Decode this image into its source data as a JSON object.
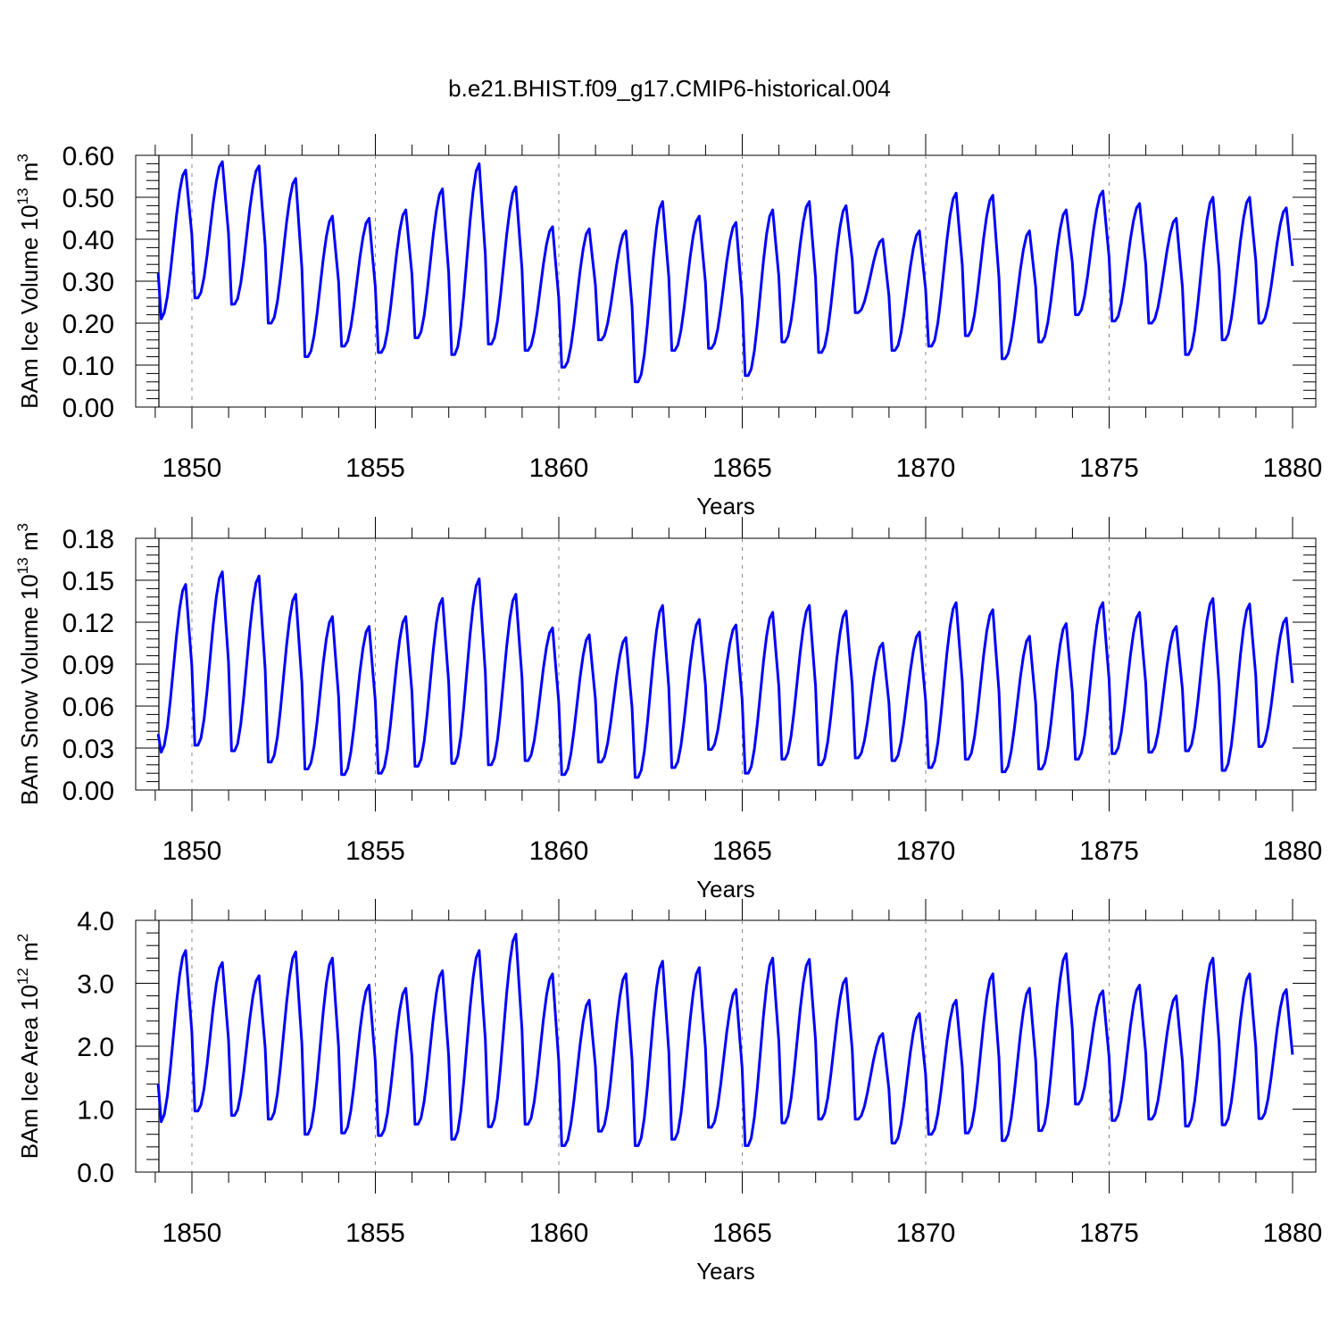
{
  "title": "b.e21.BHIST.f09_g17.CMIP6-historical.004",
  "chart_data": [
    {
      "type": "line",
      "ylabel": "BAm Ice Volume",
      "yunit_base": "10",
      "yunit_exp": "13",
      "yunit_sym": "m",
      "yunit_pow": "3",
      "xlabel": "Years",
      "xlim": [
        1849.08,
        1880.0
      ],
      "ylim": [
        0.0,
        0.6
      ],
      "xticks": [
        "1850",
        "1855",
        "1860",
        "1865",
        "1870",
        "1875",
        "1880"
      ],
      "yticks": [
        "0.00",
        "0.10",
        "0.20",
        "0.30",
        "0.40",
        "0.50",
        "0.60"
      ],
      "series": [
        {
          "color": "#0000ff",
          "peaks": [
            0.565,
            0.585,
            0.575,
            0.545,
            0.455,
            0.45,
            0.47,
            0.52,
            0.58,
            0.525,
            0.43,
            0.425,
            0.42,
            0.49,
            0.455,
            0.44,
            0.47,
            0.49,
            0.48,
            0.4,
            0.42,
            0.51,
            0.505,
            0.42,
            0.47,
            0.515,
            0.485,
            0.45,
            0.5,
            0.5,
            0.475
          ],
          "troughs": [
            0.21,
            0.26,
            0.245,
            0.2,
            0.12,
            0.145,
            0.13,
            0.165,
            0.125,
            0.15,
            0.135,
            0.095,
            0.16,
            0.06,
            0.135,
            0.14,
            0.075,
            0.155,
            0.13,
            0.225,
            0.135,
            0.145,
            0.17,
            0.115,
            0.155,
            0.22,
            0.205,
            0.2,
            0.125,
            0.16,
            0.2
          ]
        }
      ]
    },
    {
      "type": "line",
      "ylabel": "BAm Snow Volume",
      "yunit_base": "10",
      "yunit_exp": "13",
      "yunit_sym": "m",
      "yunit_pow": "3",
      "xlabel": "Years",
      "xlim": [
        1849.08,
        1880.0
      ],
      "ylim": [
        0.0,
        0.18
      ],
      "xticks": [
        "1850",
        "1855",
        "1860",
        "1865",
        "1870",
        "1875",
        "1880"
      ],
      "yticks": [
        "0.00",
        "0.03",
        "0.06",
        "0.09",
        "0.12",
        "0.15",
        "0.18"
      ],
      "series": [
        {
          "color": "#0000ff",
          "peaks": [
            0.147,
            0.156,
            0.153,
            0.14,
            0.124,
            0.117,
            0.124,
            0.137,
            0.151,
            0.14,
            0.116,
            0.111,
            0.109,
            0.132,
            0.122,
            0.118,
            0.127,
            0.132,
            0.128,
            0.105,
            0.113,
            0.134,
            0.129,
            0.11,
            0.119,
            0.134,
            0.127,
            0.117,
            0.137,
            0.133,
            0.123
          ],
          "troughs": [
            0.027,
            0.032,
            0.028,
            0.02,
            0.015,
            0.011,
            0.012,
            0.017,
            0.019,
            0.018,
            0.021,
            0.011,
            0.02,
            0.009,
            0.016,
            0.029,
            0.012,
            0.022,
            0.018,
            0.023,
            0.021,
            0.016,
            0.022,
            0.013,
            0.015,
            0.022,
            0.026,
            0.027,
            0.028,
            0.014,
            0.031
          ]
        }
      ]
    },
    {
      "type": "line",
      "ylabel": "BAm Ice Area",
      "yunit_base": "10",
      "yunit_exp": "12",
      "yunit_sym": "m",
      "yunit_pow": "2",
      "xlabel": "Years",
      "xlim": [
        1849.08,
        1880.0
      ],
      "ylim": [
        0.0,
        4.0
      ],
      "xticks": [
        "1850",
        "1855",
        "1860",
        "1865",
        "1870",
        "1875",
        "1880"
      ],
      "yticks": [
        "0.0",
        "1.0",
        "2.0",
        "3.0",
        "4.0"
      ],
      "series": [
        {
          "color": "#0000ff",
          "peaks": [
            3.52,
            3.33,
            3.12,
            3.5,
            3.4,
            2.97,
            2.92,
            3.2,
            3.52,
            3.78,
            3.15,
            2.73,
            3.15,
            3.35,
            3.25,
            2.9,
            3.4,
            3.38,
            3.08,
            2.2,
            2.52,
            2.73,
            3.15,
            2.92,
            3.47,
            2.88,
            2.97,
            2.8,
            3.4,
            3.15,
            2.9
          ],
          "troughs": [
            0.8,
            0.97,
            0.9,
            0.84,
            0.6,
            0.62,
            0.58,
            0.76,
            0.52,
            0.72,
            0.76,
            0.42,
            0.65,
            0.42,
            0.52,
            0.71,
            0.42,
            0.78,
            0.84,
            0.84,
            0.46,
            0.6,
            0.62,
            0.5,
            0.66,
            1.08,
            0.82,
            0.84,
            0.73,
            0.75,
            0.85
          ]
        }
      ]
    }
  ]
}
